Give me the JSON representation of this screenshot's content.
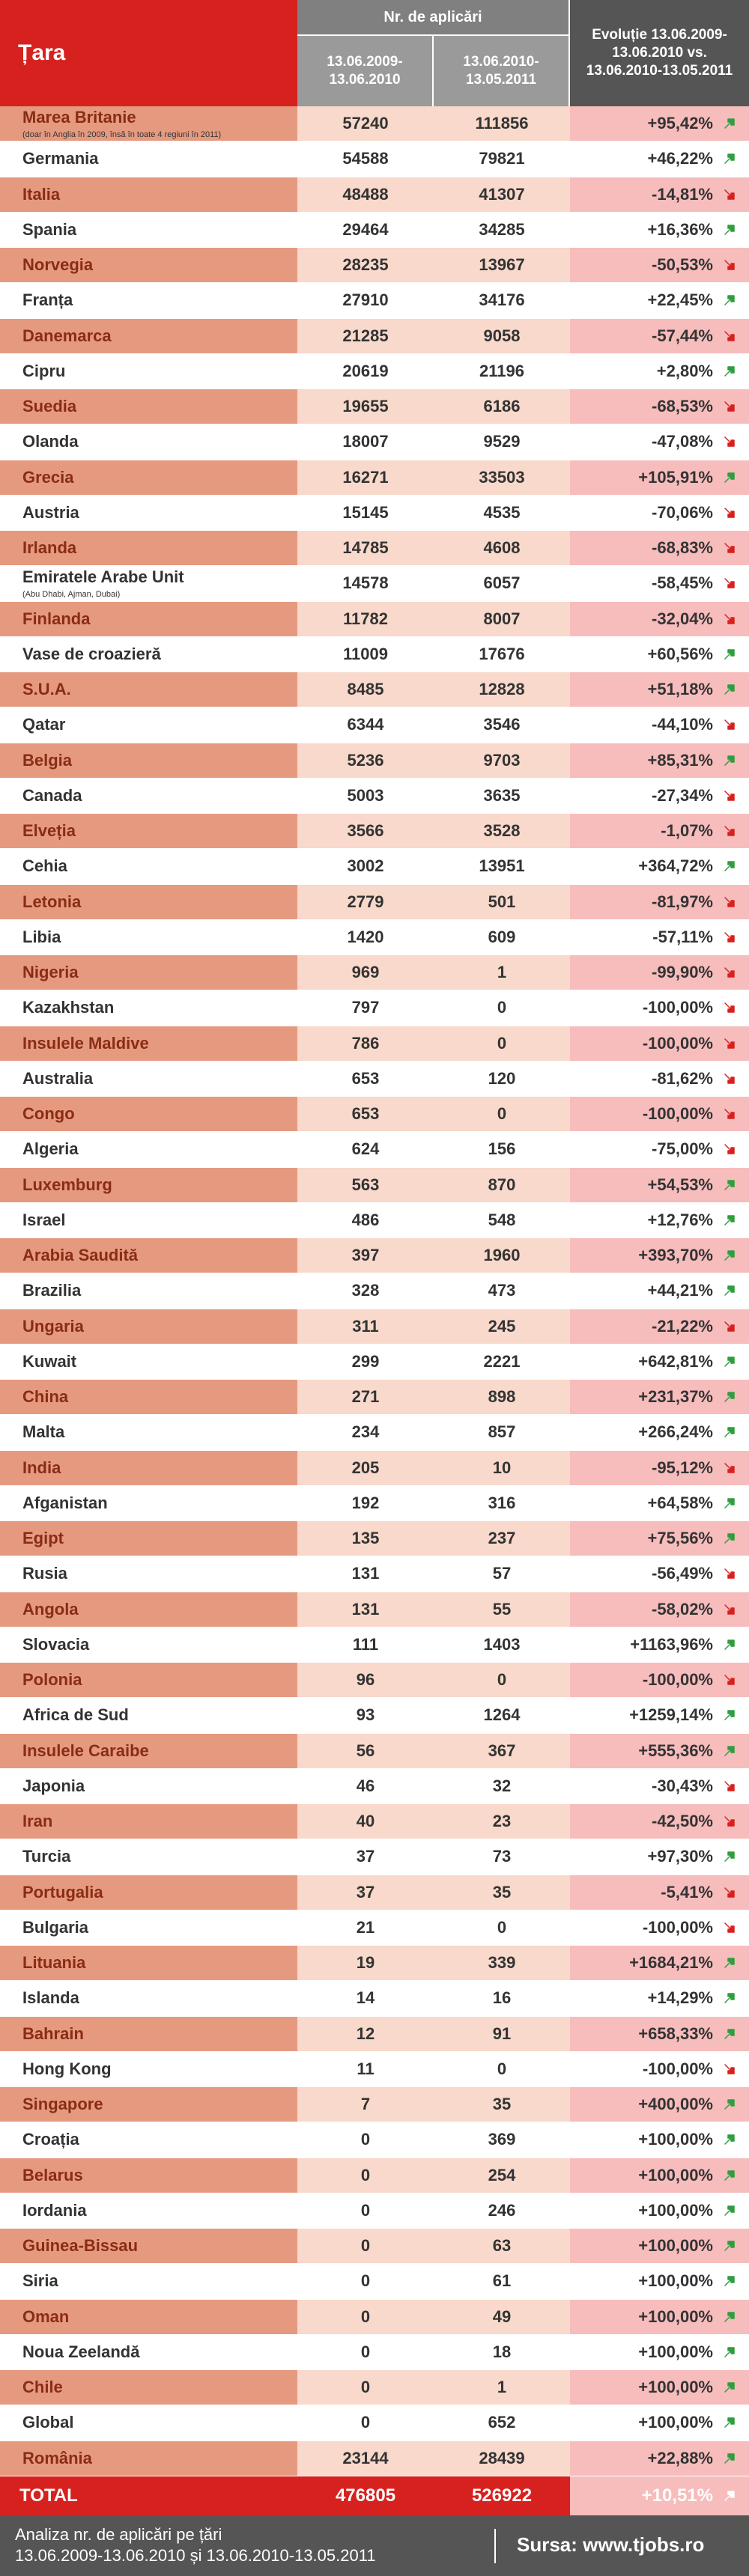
{
  "header": {
    "country_label": "Țara",
    "apps_label": "Nr. de aplicări",
    "period1": "13.06.2009-\n13.06.2010",
    "period2": "13.06.2010-\n13.05.2011",
    "evolution": "Evoluție 13.06.2009-\n13.06.2010 vs.\n13.06.2010-13.05.2011"
  },
  "colors": {
    "up": "#2e9e3e",
    "down": "#d7211f",
    "accent": "#d7211f"
  },
  "chart_data": {
    "type": "table",
    "columns": [
      "Țara",
      "13.06.2009-13.06.2010",
      "13.06.2010-13.05.2011",
      "Evoluție 13.06.2009-13.06.2010 vs. 13.06.2010-13.05.2011"
    ],
    "rows": [
      {
        "country": "Marea Britanie",
        "note": "(doar în Anglia în 2009, însă în toate 4 regiuni în 2011)",
        "p1": "57240",
        "p2": "111856",
        "evo": "+95,42%",
        "dir": "up"
      },
      {
        "country": "Germania",
        "p1": "54588",
        "p2": "79821",
        "evo": "+46,22%",
        "dir": "up"
      },
      {
        "country": "Italia",
        "p1": "48488",
        "p2": "41307",
        "evo": "-14,81%",
        "dir": "down"
      },
      {
        "country": "Spania",
        "p1": "29464",
        "p2": "34285",
        "evo": "+16,36%",
        "dir": "up"
      },
      {
        "country": "Norvegia",
        "p1": "28235",
        "p2": "13967",
        "evo": "-50,53%",
        "dir": "down"
      },
      {
        "country": "Franța",
        "p1": "27910",
        "p2": "34176",
        "evo": "+22,45%",
        "dir": "up"
      },
      {
        "country": "Danemarca",
        "p1": "21285",
        "p2": "9058",
        "evo": "-57,44%",
        "dir": "down"
      },
      {
        "country": "Cipru",
        "p1": "20619",
        "p2": "21196",
        "evo": "+2,80%",
        "dir": "up"
      },
      {
        "country": "Suedia",
        "p1": "19655",
        "p2": "6186",
        "evo": "-68,53%",
        "dir": "down"
      },
      {
        "country": "Olanda",
        "p1": "18007",
        "p2": "9529",
        "evo": "-47,08%",
        "dir": "down"
      },
      {
        "country": "Grecia",
        "p1": "16271",
        "p2": "33503",
        "evo": "+105,91%",
        "dir": "up"
      },
      {
        "country": "Austria",
        "p1": "15145",
        "p2": "4535",
        "evo": "-70,06%",
        "dir": "down"
      },
      {
        "country": "Irlanda",
        "p1": "14785",
        "p2": "4608",
        "evo": "-68,83%",
        "dir": "down"
      },
      {
        "country": "Emiratele Arabe Unit",
        "note": "(Abu Dhabi, Ajman, Dubai)",
        "p1": "14578",
        "p2": "6057",
        "evo": "-58,45%",
        "dir": "down"
      },
      {
        "country": "Finlanda",
        "p1": "11782",
        "p2": "8007",
        "evo": "-32,04%",
        "dir": "down"
      },
      {
        "country": "Vase de croazieră",
        "p1": "11009",
        "p2": "17676",
        "evo": "+60,56%",
        "dir": "up"
      },
      {
        "country": "S.U.A.",
        "p1": "8485",
        "p2": "12828",
        "evo": "+51,18%",
        "dir": "up"
      },
      {
        "country": "Qatar",
        "p1": "6344",
        "p2": "3546",
        "evo": "-44,10%",
        "dir": "down"
      },
      {
        "country": "Belgia",
        "p1": "5236",
        "p2": "9703",
        "evo": "+85,31%",
        "dir": "up"
      },
      {
        "country": "Canada",
        "p1": "5003",
        "p2": "3635",
        "evo": "-27,34%",
        "dir": "down"
      },
      {
        "country": "Elveția",
        "p1": "3566",
        "p2": "3528",
        "evo": "-1,07%",
        "dir": "down"
      },
      {
        "country": "Cehia",
        "p1": "3002",
        "p2": "13951",
        "evo": "+364,72%",
        "dir": "up"
      },
      {
        "country": "Letonia",
        "p1": "2779",
        "p2": "501",
        "evo": "-81,97%",
        "dir": "down"
      },
      {
        "country": "Libia",
        "p1": "1420",
        "p2": "609",
        "evo": "-57,11%",
        "dir": "down"
      },
      {
        "country": "Nigeria",
        "p1": "969",
        "p2": "1",
        "evo": "-99,90%",
        "dir": "down"
      },
      {
        "country": "Kazakhstan",
        "p1": "797",
        "p2": "0",
        "evo": "-100,00%",
        "dir": "down"
      },
      {
        "country": "Insulele Maldive",
        "p1": "786",
        "p2": "0",
        "evo": "-100,00%",
        "dir": "down"
      },
      {
        "country": "Australia",
        "p1": "653",
        "p2": "120",
        "evo": "-81,62%",
        "dir": "down"
      },
      {
        "country": "Congo",
        "p1": "653",
        "p2": "0",
        "evo": "-100,00%",
        "dir": "down"
      },
      {
        "country": "Algeria",
        "p1": "624",
        "p2": "156",
        "evo": "-75,00%",
        "dir": "down"
      },
      {
        "country": "Luxemburg",
        "p1": "563",
        "p2": "870",
        "evo": "+54,53%",
        "dir": "up"
      },
      {
        "country": "Israel",
        "p1": "486",
        "p2": "548",
        "evo": "+12,76%",
        "dir": "up"
      },
      {
        "country": "Arabia Saudită",
        "p1": "397",
        "p2": "1960",
        "evo": "+393,70%",
        "dir": "up"
      },
      {
        "country": "Brazilia",
        "p1": "328",
        "p2": "473",
        "evo": "+44,21%",
        "dir": "up"
      },
      {
        "country": "Ungaria",
        "p1": "311",
        "p2": "245",
        "evo": "-21,22%",
        "dir": "down"
      },
      {
        "country": "Kuwait",
        "p1": "299",
        "p2": "2221",
        "evo": "+642,81%",
        "dir": "up"
      },
      {
        "country": "China",
        "p1": "271",
        "p2": "898",
        "evo": "+231,37%",
        "dir": "up"
      },
      {
        "country": "Malta",
        "p1": "234",
        "p2": "857",
        "evo": "+266,24%",
        "dir": "up"
      },
      {
        "country": "India",
        "p1": "205",
        "p2": "10",
        "evo": "-95,12%",
        "dir": "down"
      },
      {
        "country": "Afganistan",
        "p1": "192",
        "p2": "316",
        "evo": "+64,58%",
        "dir": "up"
      },
      {
        "country": "Egipt",
        "p1": "135",
        "p2": "237",
        "evo": "+75,56%",
        "dir": "up"
      },
      {
        "country": "Rusia",
        "p1": "131",
        "p2": "57",
        "evo": "-56,49%",
        "dir": "down"
      },
      {
        "country": "Angola",
        "p1": "131",
        "p2": "55",
        "evo": "-58,02%",
        "dir": "down"
      },
      {
        "country": "Slovacia",
        "p1": "111",
        "p2": "1403",
        "evo": "+1163,96%",
        "dir": "up"
      },
      {
        "country": "Polonia",
        "p1": "96",
        "p2": "0",
        "evo": "-100,00%",
        "dir": "down"
      },
      {
        "country": "Africa de Sud",
        "p1": "93",
        "p2": "1264",
        "evo": "+1259,14%",
        "dir": "up"
      },
      {
        "country": "Insulele Caraibe",
        "p1": "56",
        "p2": "367",
        "evo": "+555,36%",
        "dir": "up"
      },
      {
        "country": "Japonia",
        "p1": "46",
        "p2": "32",
        "evo": "-30,43%",
        "dir": "down"
      },
      {
        "country": "Iran",
        "p1": "40",
        "p2": "23",
        "evo": "-42,50%",
        "dir": "down"
      },
      {
        "country": "Turcia",
        "p1": "37",
        "p2": "73",
        "evo": "+97,30%",
        "dir": "up"
      },
      {
        "country": "Portugalia",
        "p1": "37",
        "p2": "35",
        "evo": "-5,41%",
        "dir": "down"
      },
      {
        "country": "Bulgaria",
        "p1": "21",
        "p2": "0",
        "evo": "-100,00%",
        "dir": "down"
      },
      {
        "country": "Lituania",
        "p1": "19",
        "p2": "339",
        "evo": "+1684,21%",
        "dir": "up"
      },
      {
        "country": "Islanda",
        "p1": "14",
        "p2": "16",
        "evo": "+14,29%",
        "dir": "up"
      },
      {
        "country": "Bahrain",
        "p1": "12",
        "p2": "91",
        "evo": "+658,33%",
        "dir": "up"
      },
      {
        "country": "Hong Kong",
        "p1": "11",
        "p2": "0",
        "evo": "-100,00%",
        "dir": "down"
      },
      {
        "country": "Singapore",
        "p1": "7",
        "p2": "35",
        "evo": "+400,00%",
        "dir": "up"
      },
      {
        "country": "Croația",
        "p1": "0",
        "p2": "369",
        "evo": "+100,00%",
        "dir": "up"
      },
      {
        "country": "Belarus",
        "p1": "0",
        "p2": "254",
        "evo": "+100,00%",
        "dir": "up"
      },
      {
        "country": "Iordania",
        "p1": "0",
        "p2": "246",
        "evo": "+100,00%",
        "dir": "up"
      },
      {
        "country": "Guinea-Bissau",
        "p1": "0",
        "p2": "63",
        "evo": "+100,00%",
        "dir": "up"
      },
      {
        "country": "Siria",
        "p1": "0",
        "p2": "61",
        "evo": "+100,00%",
        "dir": "up"
      },
      {
        "country": "Oman",
        "p1": "0",
        "p2": "49",
        "evo": "+100,00%",
        "dir": "up"
      },
      {
        "country": "Noua Zeelandă",
        "p1": "0",
        "p2": "18",
        "evo": "+100,00%",
        "dir": "up"
      },
      {
        "country": "Chile",
        "p1": "0",
        "p2": "1",
        "evo": "+100,00%",
        "dir": "up"
      },
      {
        "country": "Global",
        "p1": "0",
        "p2": "652",
        "evo": "+100,00%",
        "dir": "up"
      },
      {
        "country": "România",
        "p1": "23144",
        "p2": "28439",
        "evo": "+22,88%",
        "dir": "up"
      }
    ]
  },
  "total": {
    "label": "TOTAL",
    "p1": "476805",
    "p2": "526922",
    "evo": "+10,51%",
    "dir": "up"
  },
  "footer": {
    "caption": "Analiza nr. de aplicări pe țări\n13.06.2009-13.06.2010 și 13.06.2010-13.05.2011",
    "source": "Sursa: www.tjobs.ro"
  }
}
